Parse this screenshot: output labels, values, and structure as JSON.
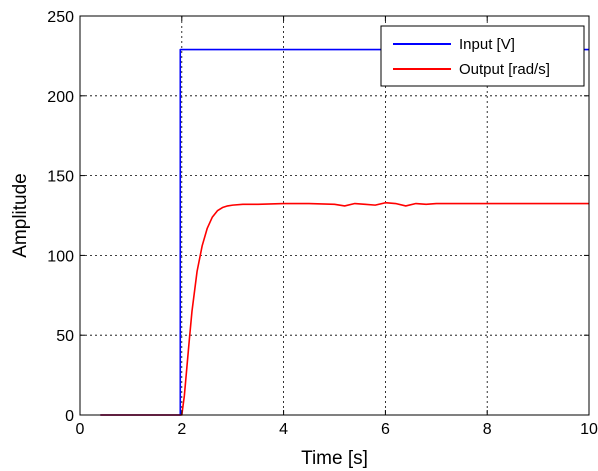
{
  "chart_data": {
    "type": "line",
    "xlabel": "Time [s]",
    "ylabel": "Amplitude",
    "xlim": [
      0,
      10
    ],
    "ylim": [
      0,
      250
    ],
    "xticks": [
      0,
      2,
      4,
      6,
      8,
      10
    ],
    "yticks": [
      0,
      50,
      100,
      150,
      200,
      250
    ],
    "grid": true,
    "legend_position": "top-right",
    "series": [
      {
        "name": "Input [V]",
        "color": "#0000ff",
        "x": [
          0.4,
          1.97,
          1.97,
          10
        ],
        "y": [
          0,
          0,
          229,
          229
        ]
      },
      {
        "name": "Output [rad/s]",
        "color": "#ff0000",
        "x": [
          0.4,
          2.0,
          2.05,
          2.1,
          2.15,
          2.2,
          2.3,
          2.4,
          2.5,
          2.6,
          2.7,
          2.8,
          2.9,
          3.0,
          3.2,
          3.5,
          4.0,
          4.5,
          5.0,
          5.2,
          5.4,
          5.6,
          5.8,
          6.0,
          6.2,
          6.4,
          6.6,
          6.8,
          7.0,
          8.0,
          9.0,
          10.0
        ],
        "y": [
          0,
          0,
          12,
          30,
          48,
          65,
          90,
          106,
          117,
          124,
          128,
          130,
          131,
          131.5,
          132,
          132,
          132.5,
          132.5,
          132,
          131,
          132.5,
          132,
          131.5,
          133,
          132.5,
          131,
          132.5,
          132,
          132.5,
          132.5,
          132.5,
          132.5
        ]
      }
    ]
  }
}
